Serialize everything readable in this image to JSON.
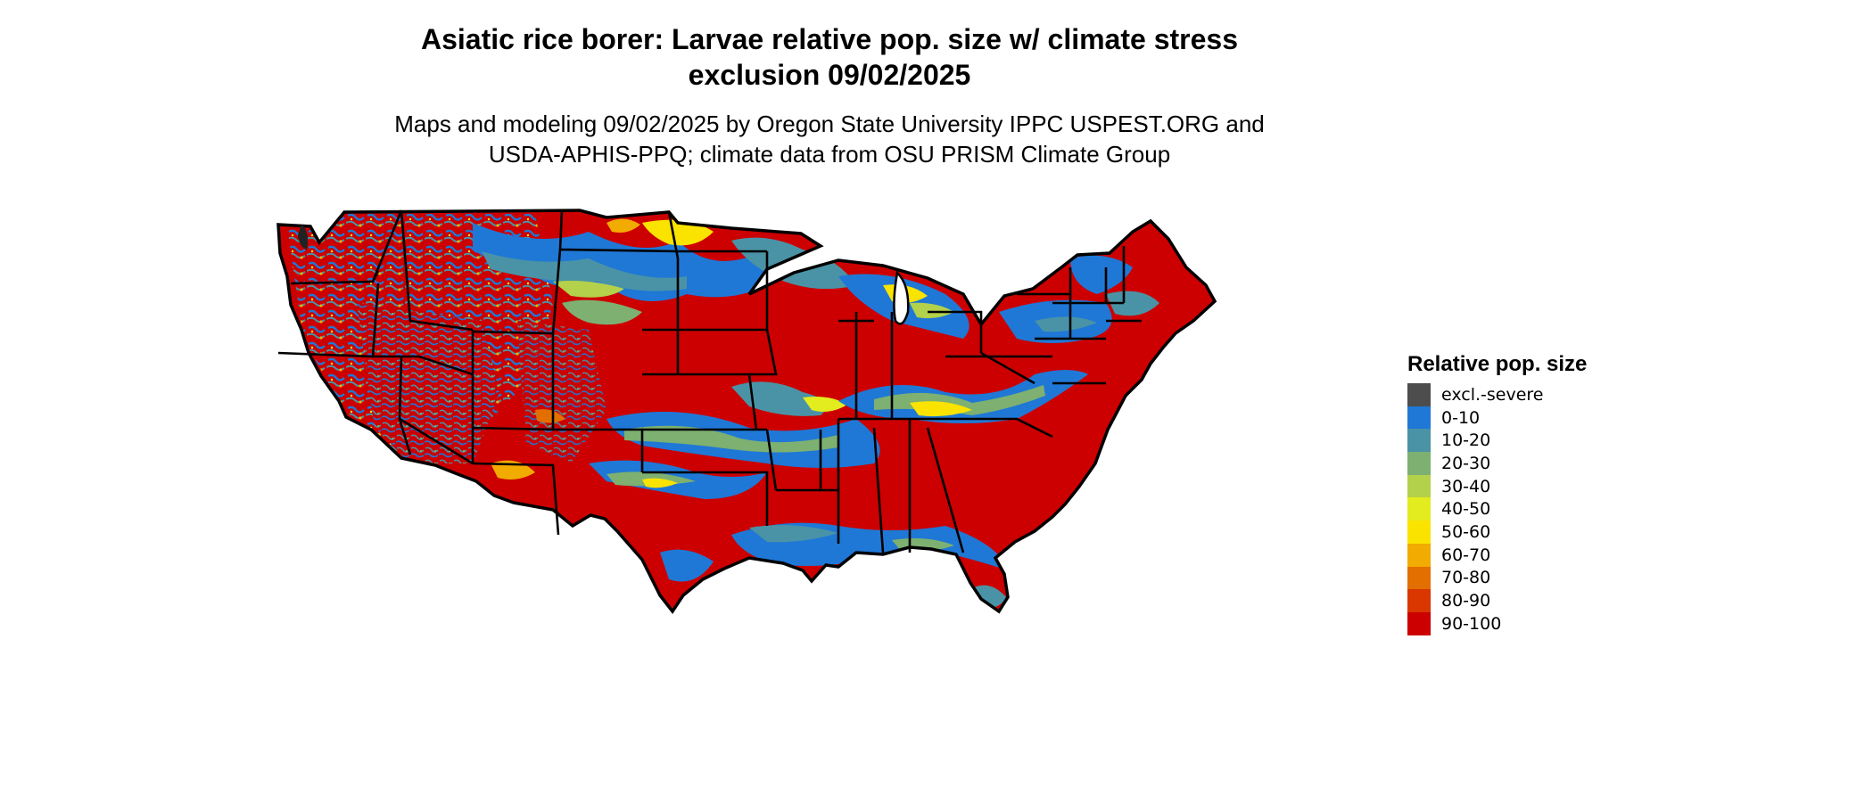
{
  "title": {
    "line1": "Asiatic rice borer: Larvae relative pop. size w/ climate stress",
    "line2": "exclusion 09/02/2025"
  },
  "subtitle": {
    "line1": "Maps and modeling 09/02/2025 by Oregon State University IPPC USPEST.ORG and",
    "line2": "USDA-APHIS-PPQ; climate data from OSU PRISM Climate Group"
  },
  "legend": {
    "title": "Relative pop. size",
    "items": [
      {
        "label": "excl.-severe",
        "color": "#4d4d4d"
      },
      {
        "label": "0-10",
        "color": "#1f78d6"
      },
      {
        "label": "10-20",
        "color": "#4a93a6"
      },
      {
        "label": "20-30",
        "color": "#7db071"
      },
      {
        "label": "30-40",
        "color": "#b3d14a"
      },
      {
        "label": "40-50",
        "color": "#e3ec1e"
      },
      {
        "label": "50-60",
        "color": "#fbe300"
      },
      {
        "label": "60-70",
        "color": "#f2ab00"
      },
      {
        "label": "70-80",
        "color": "#e26f00"
      },
      {
        "label": "80-90",
        "color": "#d93600"
      },
      {
        "label": "90-100",
        "color": "#cc0000"
      }
    ]
  },
  "map": {
    "region": "Contiguous United States",
    "base_color": "#cc0000",
    "border_color": "#000000"
  }
}
